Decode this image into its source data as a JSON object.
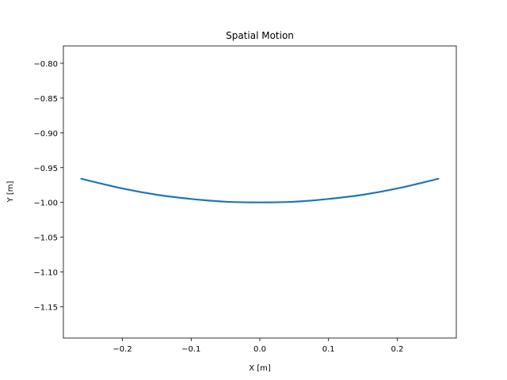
{
  "chart_data": {
    "type": "line",
    "title": "Spatial Motion",
    "xlabel": "X [m]",
    "ylabel": "Y [m]",
    "xlim": [
      -0.286,
      0.286
    ],
    "ylim": [
      -1.195,
      -0.775
    ],
    "grid": false,
    "x_ticks": [
      -0.2,
      -0.1,
      0.0,
      0.1,
      0.2
    ],
    "x_tick_labels": [
      "−0.2",
      "−0.1",
      "0.0",
      "0.1",
      "0.2"
    ],
    "y_ticks": [
      -0.8,
      -0.85,
      -0.9,
      -0.95,
      -1.0,
      -1.05,
      -1.1,
      -1.15
    ],
    "y_tick_labels": [
      "−0.80",
      "−0.85",
      "−0.90",
      "−0.95",
      "−1.00",
      "−1.05",
      "−1.10",
      "−1.15"
    ],
    "series": [
      {
        "color": "#1f77b4",
        "x": [
          -0.26,
          -0.2,
          -0.15,
          -0.1,
          -0.05,
          0.0,
          0.05,
          0.1,
          0.15,
          0.2,
          0.26
        ],
        "y": [
          -0.966,
          -0.98,
          -0.989,
          -0.995,
          -0.999,
          -1.0,
          -0.999,
          -0.995,
          -0.989,
          -0.98,
          -0.966
        ]
      }
    ]
  }
}
